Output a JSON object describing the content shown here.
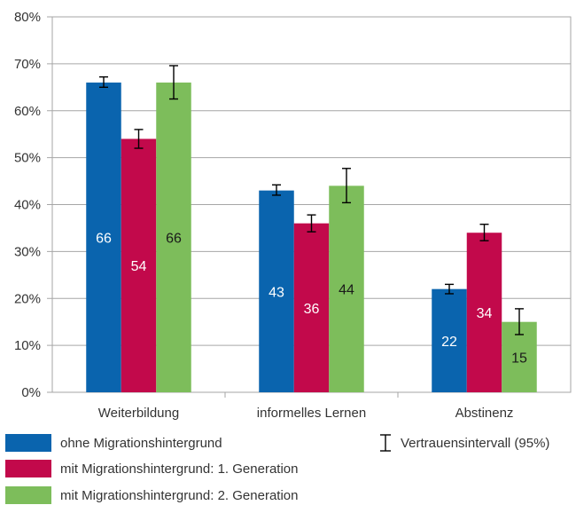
{
  "chart_data": {
    "type": "bar",
    "categories": [
      "Weiterbildung",
      "informelles Lernen",
      "Abstinenz"
    ],
    "series": [
      {
        "name": "ohne Migrationshintergrund",
        "color": "#0a64ae",
        "label_color": "#ffffff",
        "values": [
          66,
          43,
          22
        ],
        "ci": [
          [
            65,
            67.2
          ],
          [
            42,
            44.2
          ],
          [
            21,
            23
          ]
        ]
      },
      {
        "name": "mit Migrationshintergrund: 1. Generation",
        "color": "#c2094b",
        "label_color": "#ffffff",
        "values": [
          54,
          36,
          34
        ],
        "ci": [
          [
            52,
            56
          ],
          [
            34.2,
            37.8
          ],
          [
            32.3,
            35.8
          ]
        ]
      },
      {
        "name": "mit Migrationshintergrund: 2. Generation",
        "color": "#7dbd5b",
        "label_color": "#1a1a1a",
        "values": [
          66,
          44,
          15
        ],
        "ci": [
          [
            62.5,
            69.6
          ],
          [
            40.4,
            47.7
          ],
          [
            12.3,
            17.8
          ]
        ]
      }
    ],
    "y_ticks": [
      "0%",
      "10%",
      "20%",
      "30%",
      "40%",
      "50%",
      "60%",
      "70%",
      "80%"
    ],
    "ylim": [
      0,
      80
    ],
    "grid": true,
    "legend_position": "bottom",
    "ci_legend_label": "Vertrauensintervall (95%)"
  }
}
